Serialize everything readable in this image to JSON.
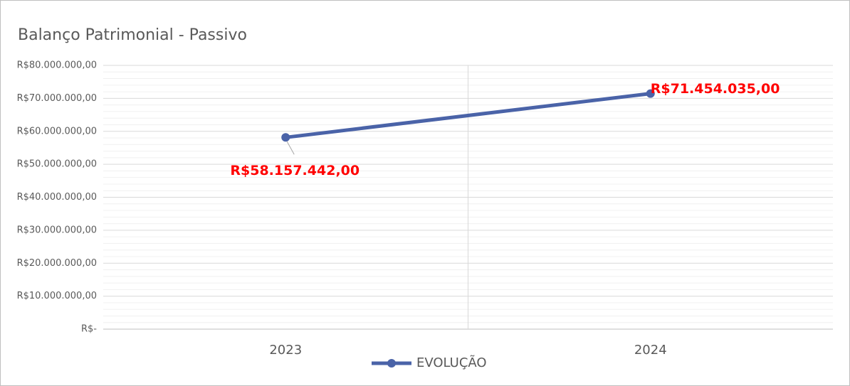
{
  "chart_data": {
    "type": "line",
    "title": "Balanço Patrimonial - Passivo",
    "categories": [
      "2023",
      "2024"
    ],
    "series": [
      {
        "name": "EVOLUÇÃO",
        "color": "#4a63a8",
        "values": [
          58157442,
          71454035
        ],
        "value_labels": [
          "R$58.157.442,00",
          "R$71.454.035,00"
        ],
        "label_color": "#ff0000"
      }
    ],
    "ylim": [
      0,
      80000000
    ],
    "yticks": [
      {
        "value": 0,
        "label": "R$-"
      },
      {
        "value": 10000000,
        "label": "R$10.000.000,00"
      },
      {
        "value": 20000000,
        "label": "R$20.000.000,00"
      },
      {
        "value": 30000000,
        "label": "R$30.000.000,00"
      },
      {
        "value": 40000000,
        "label": "R$40.000.000,00"
      },
      {
        "value": 50000000,
        "label": "R$50.000.000,00"
      },
      {
        "value": 60000000,
        "label": "R$60.000.000,00"
      },
      {
        "value": 70000000,
        "label": "R$70.000.000,00"
      },
      {
        "value": 80000000,
        "label": "R$80.000.000,00"
      }
    ],
    "grid": true,
    "legend": "bottom"
  }
}
